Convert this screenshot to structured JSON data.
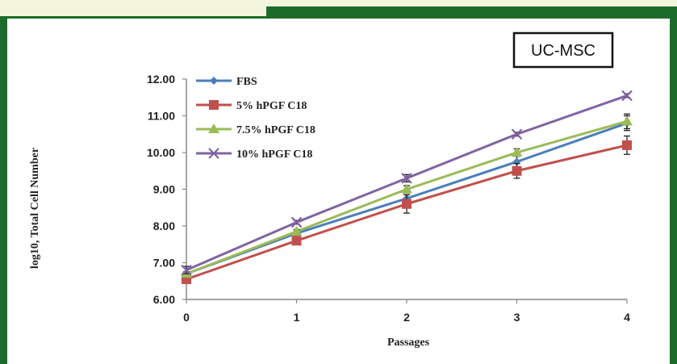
{
  "badge": "UC-MSC",
  "chart_data": {
    "type": "line",
    "title": "UC-MSC",
    "xlabel": "Passages",
    "ylabel": "log10, Total Cell Number",
    "x": [
      0,
      1,
      2,
      3,
      4
    ],
    "x_ticks": [
      "0",
      "1",
      "2",
      "3",
      "4"
    ],
    "y_ticks": [
      "6.00",
      "7.00",
      "8.00",
      "9.00",
      "10.00",
      "11.00",
      "12.00"
    ],
    "ylim": [
      6,
      12
    ],
    "xlim": [
      0,
      4
    ],
    "grid": false,
    "legend_position": "top-left",
    "series": [
      {
        "name": "FBS",
        "values": [
          6.7,
          7.8,
          8.75,
          9.75,
          10.8
        ],
        "err": [
          0.05,
          0.05,
          0.1,
          0.15,
          0.2
        ],
        "color": "#4a7ebb",
        "marker": "diamond"
      },
      {
        "name": "5% hPGF C18",
        "values": [
          6.55,
          7.6,
          8.6,
          9.5,
          10.2
        ],
        "err": [
          0.05,
          0.05,
          0.25,
          0.2,
          0.25
        ],
        "color": "#c0504d",
        "marker": "square"
      },
      {
        "name": "7.5% hPGF C18",
        "values": [
          6.7,
          7.85,
          9.0,
          10.0,
          10.85
        ],
        "err": [
          0.05,
          0.05,
          0.1,
          0.1,
          0.2
        ],
        "color": "#9bbb59",
        "marker": "triangle"
      },
      {
        "name": "10% hPGF C18",
        "values": [
          6.8,
          8.1,
          9.3,
          10.5,
          11.55
        ],
        "err": [
          0.1,
          0.05,
          0.1,
          0.05,
          0.05
        ],
        "color": "#8064a2",
        "marker": "x"
      }
    ]
  }
}
